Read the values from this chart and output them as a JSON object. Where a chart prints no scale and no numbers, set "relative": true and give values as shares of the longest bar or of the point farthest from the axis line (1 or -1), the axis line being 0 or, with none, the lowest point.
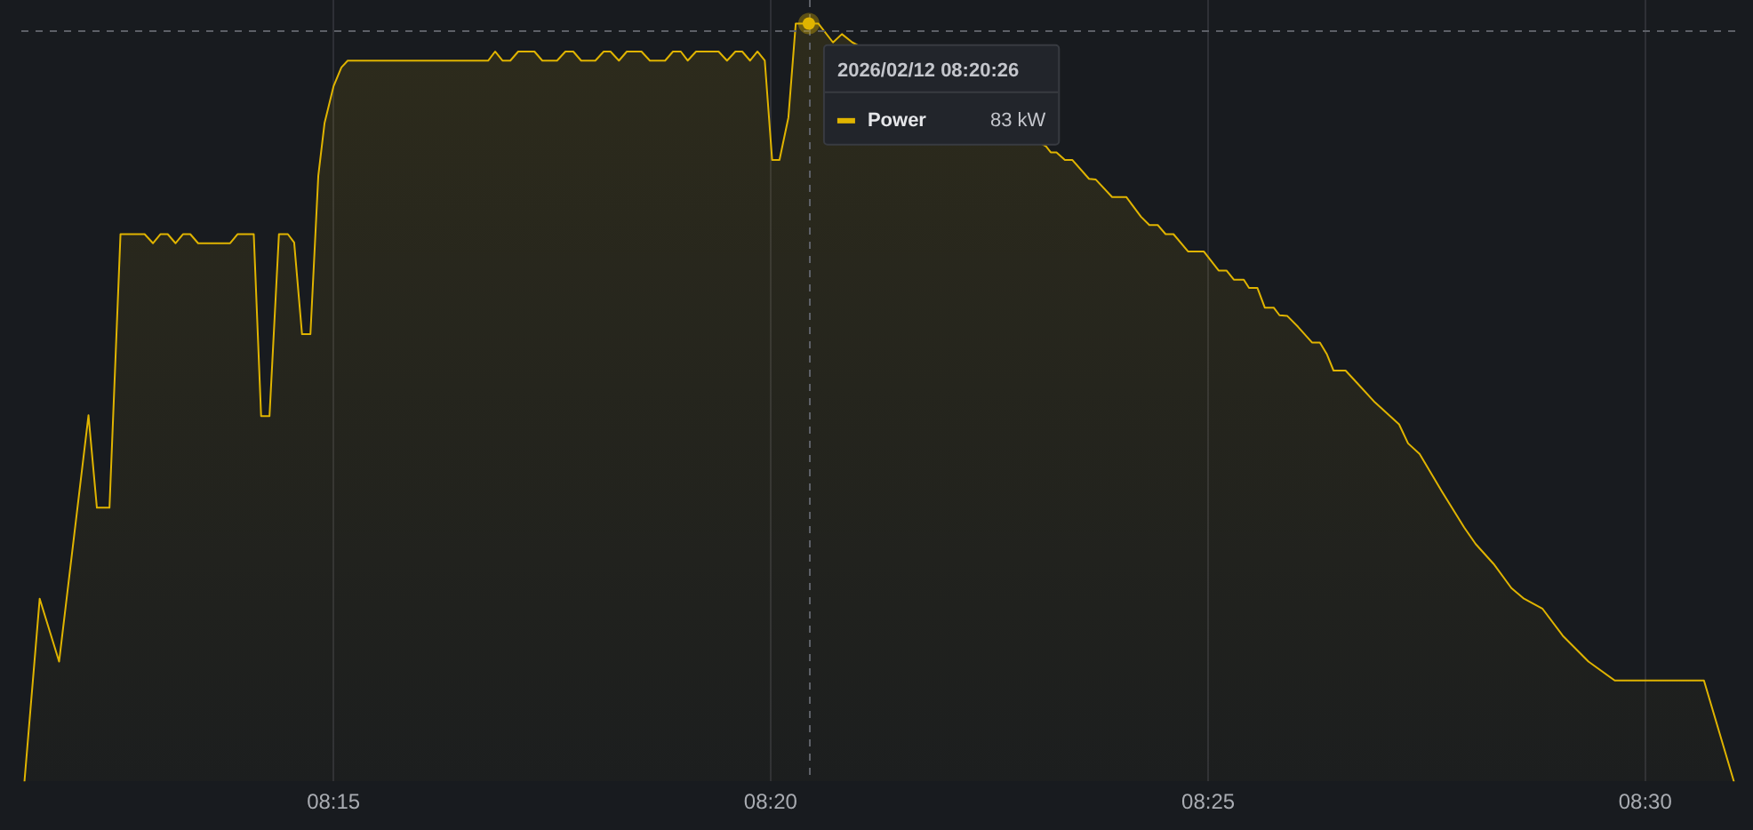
{
  "chart_data": {
    "type": "area",
    "relative": true,
    "x": [
      8.1911,
      8.194,
      8.1977,
      8.2033,
      8.2049,
      8.2073,
      8.2094,
      8.214,
      8.2156,
      8.217,
      8.2184,
      8.2199,
      8.2213,
      8.2227,
      8.2242,
      8.2303,
      8.2317,
      8.2348,
      8.2362,
      8.2378,
      8.2396,
      8.2413,
      8.2425,
      8.244,
      8.2456,
      8.2471,
      8.2483,
      8.25,
      8.2515,
      8.2527,
      8.2795,
      8.2808,
      8.2822,
      8.2837,
      8.2852,
      8.2883,
      8.2898,
      8.2926,
      8.2942,
      8.2957,
      8.2972,
      8.2999,
      8.3015,
      8.3028,
      8.3044,
      8.3059,
      8.3087,
      8.3103,
      8.3132,
      8.3147,
      8.3162,
      8.3175,
      8.3191,
      8.3234,
      8.325,
      8.3266,
      8.3279,
      8.3294,
      8.3308,
      8.3322,
      8.3336,
      8.335,
      8.3367,
      8.3381,
      8.3406,
      8.3424,
      8.3452,
      8.3469,
      8.3489,
      8.3858,
      8.3867,
      8.3878,
      8.3894,
      8.3908,
      8.394,
      8.3953,
      8.3984,
      8.4011,
      8.4039,
      8.4055,
      8.4071,
      8.4086,
      8.4101,
      8.4129,
      8.4159,
      8.4187,
      8.4202,
      8.4216,
      8.4235,
      8.4245,
      8.4261,
      8.4275,
      8.4292,
      8.4303,
      8.4318,
      8.4338,
      8.4365,
      8.438,
      8.4393,
      8.4406,
      8.4429,
      8.4449,
      8.4485,
      8.4531,
      8.4548,
      8.457,
      8.4613,
      8.4655,
      8.4677,
      8.4711,
      8.4745,
      8.4769,
      8.4804,
      8.4843,
      8.4892,
      8.4942,
      8.5112,
      8.5169
    ],
    "series": [
      {
        "name": "Power",
        "color": "#e0b400",
        "values": [
          0,
          0.241,
          0.158,
          0.483,
          0.361,
          0.361,
          0.722,
          0.722,
          0.71,
          0.722,
          0.722,
          0.71,
          0.722,
          0.722,
          0.71,
          0.71,
          0.722,
          0.722,
          0.482,
          0.482,
          0.722,
          0.722,
          0.711,
          0.59,
          0.59,
          0.799,
          0.869,
          0.917,
          0.942,
          0.951,
          0.951,
          0.963,
          0.951,
          0.951,
          0.963,
          0.963,
          0.951,
          0.951,
          0.963,
          0.963,
          0.951,
          0.951,
          0.963,
          0.963,
          0.951,
          0.963,
          0.963,
          0.951,
          0.951,
          0.963,
          0.963,
          0.951,
          0.963,
          0.963,
          0.951,
          0.963,
          0.963,
          0.951,
          0.963,
          0.951,
          0.82,
          0.82,
          0.876,
          1,
          1,
          1,
          0.975,
          0.986,
          0.975,
          0.838,
          0.83,
          0.83,
          0.82,
          0.82,
          0.795,
          0.794,
          0.771,
          0.771,
          0.745,
          0.734,
          0.734,
          0.722,
          0.722,
          0.699,
          0.699,
          0.674,
          0.674,
          0.662,
          0.662,
          0.651,
          0.651,
          0.625,
          0.625,
          0.615,
          0.614,
          0.6,
          0.579,
          0.579,
          0.564,
          0.542,
          0.542,
          0.527,
          0.5,
          0.471,
          0.446,
          0.432,
          0.382,
          0.335,
          0.313,
          0.287,
          0.255,
          0.241,
          0.228,
          0.192,
          0.158,
          0.133,
          0.133,
          0
        ]
      }
    ],
    "xlim": [
      8.1905,
      8.5175
    ],
    "xticks": [
      {
        "value": 8.25,
        "label": "08:15"
      },
      {
        "value": 8.3333,
        "label": "08:20"
      },
      {
        "value": 8.4167,
        "label": "08:25"
      },
      {
        "value": 8.5,
        "label": "08:30"
      }
    ],
    "grid": "x",
    "marker": "none",
    "ref_lines": [
      {
        "axis": "x",
        "value": 8.3406,
        "color": "#5d6067",
        "line_style": "dashed"
      },
      {
        "axis": "y",
        "value": 0.992,
        "color": "#5d6067",
        "line_style": "dashed"
      }
    ],
    "annotations": [
      {
        "text": "2026/02/12 08:20:26",
        "x": 8.3406,
        "y": 1
      },
      "83 kW"
    ]
  }
}
